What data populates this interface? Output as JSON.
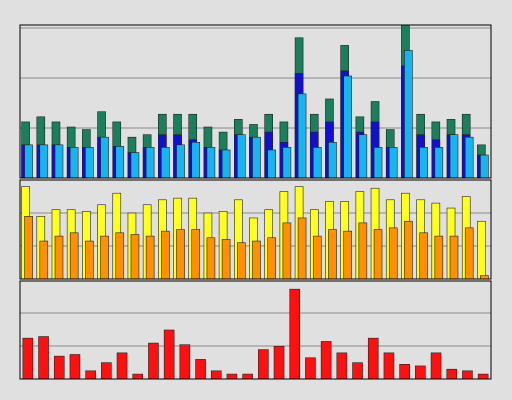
{
  "chart_data": [
    {
      "type": "bar",
      "grid": true,
      "legend": "none",
      "ylim": [
        0,
        30
      ],
      "series": [
        {
          "color": "#1a7f5a",
          "values": [
            11,
            12,
            11,
            10,
            9.5,
            13,
            11,
            8,
            8.5,
            12.5,
            12.5,
            12.5,
            10,
            9,
            11.5,
            10.5,
            12.5,
            11,
            27.5,
            12.5,
            15.5,
            26,
            12,
            15,
            9.5,
            30,
            12.5,
            11,
            11.5,
            12.5,
            6.5
          ]
        },
        {
          "color": "#1010d0",
          "values": [
            6.5,
            6.5,
            6.5,
            6,
            6,
            8,
            6.2,
            5,
            6,
            8.5,
            8.5,
            7.5,
            6,
            5.5,
            8.5,
            8,
            9,
            7,
            20.5,
            9,
            11,
            21,
            9,
            11,
            6,
            22,
            8.5,
            7.5,
            8.5,
            8.5,
            4.5
          ]
        },
        {
          "color": "#18b4f0",
          "values": [
            6.5,
            6.5,
            6.5,
            6,
            6,
            8,
            6.2,
            5,
            6,
            6,
            6.5,
            7,
            6,
            5.5,
            8.5,
            8,
            5.5,
            6,
            16.5,
            6,
            7,
            20,
            8.5,
            6,
            6,
            25,
            6,
            6,
            8.5,
            8,
            4.5
          ]
        }
      ]
    },
    {
      "type": "bar",
      "grid": true,
      "legend": "none",
      "ylim": [
        0,
        30
      ],
      "series": [
        {
          "color": "#ffff20",
          "values": [
            28,
            19,
            21,
            21,
            20.5,
            22.5,
            26,
            20,
            22.5,
            24,
            24.5,
            24.5,
            20,
            20.5,
            24,
            18.5,
            21,
            26.5,
            28,
            21,
            23.5,
            23.5,
            26.5,
            27.5,
            24,
            26,
            24,
            23,
            21.5,
            25,
            17.5
          ]
        },
        {
          "color": "#ff9000",
          "values": [
            19,
            11.5,
            13,
            14,
            11.5,
            13,
            14,
            13.5,
            13,
            14.5,
            15,
            15,
            12.5,
            12,
            11,
            11.5,
            12.5,
            17,
            18.5,
            13,
            15,
            14.5,
            17,
            15,
            15.5,
            17.5,
            14,
            13,
            13,
            15.5,
            1
          ]
        }
      ]
    },
    {
      "type": "bar",
      "grid": true,
      "legend": "none",
      "ylim": [
        0,
        30
      ],
      "series": [
        {
          "color": "#ff1010",
          "values": [
            12.5,
            13,
            7,
            7.5,
            2.5,
            5,
            8,
            1.5,
            11,
            15,
            10.5,
            6,
            2.5,
            1.5,
            1.5,
            9,
            10,
            27.5,
            6.5,
            11.5,
            8,
            5,
            12.5,
            8,
            4.5,
            4,
            8,
            3,
            2.5,
            1.5
          ]
        }
      ]
    }
  ]
}
